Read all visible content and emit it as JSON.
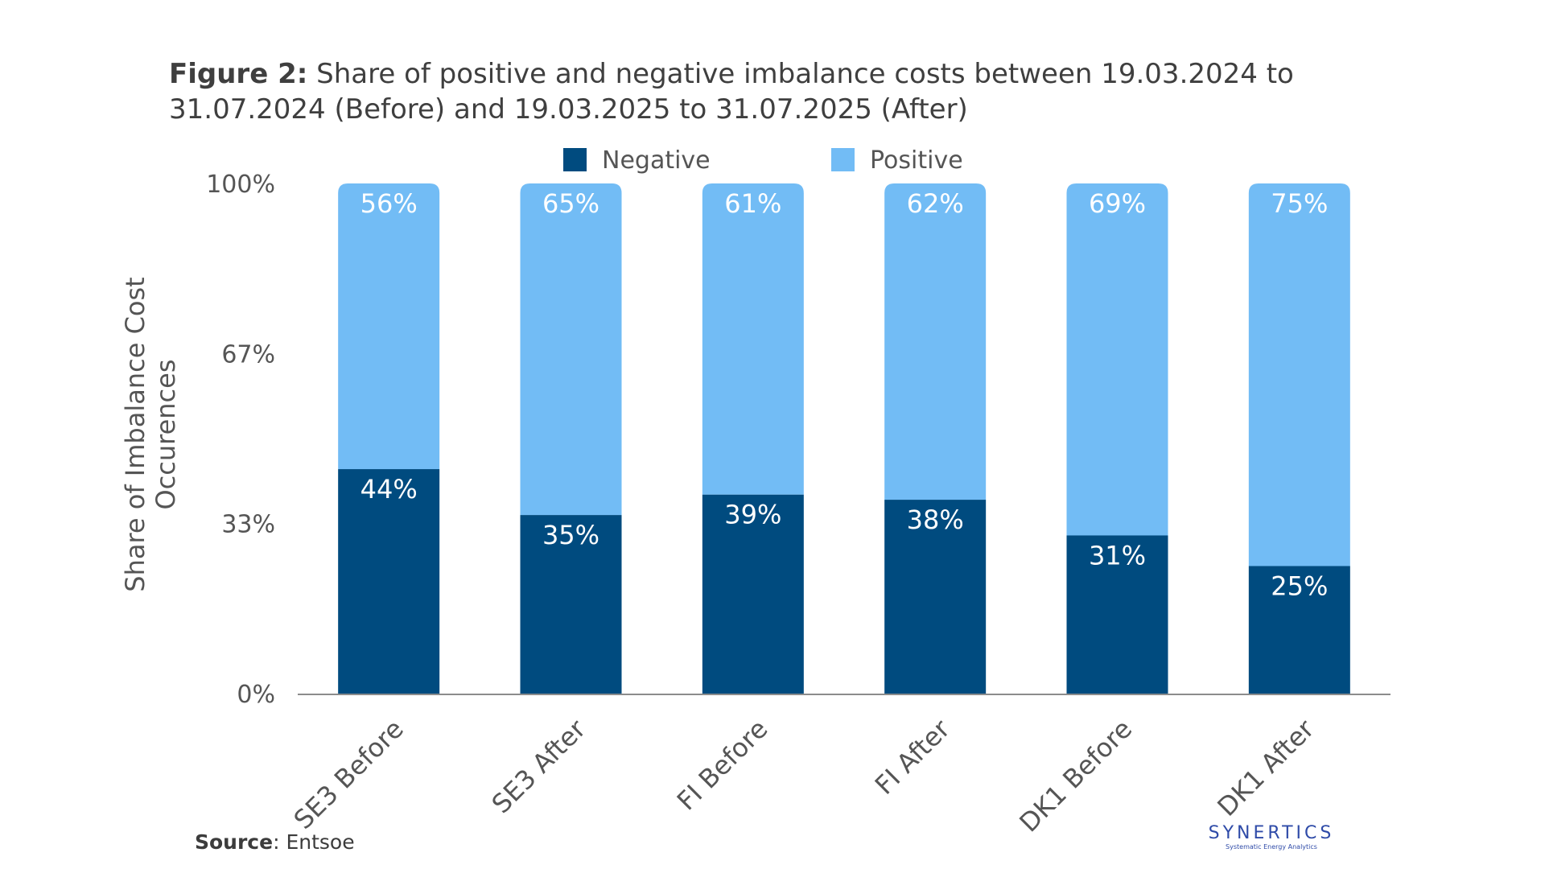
{
  "title": {
    "lead": "Figure 2:",
    "text": "Share of positive and negative imbalance costs between 19.03.2024 to 31.07.2024 (Before) and 19.03.2025 to 31.07.2025 (After)"
  },
  "source": {
    "label": "Source",
    "text": ": Entsoe"
  },
  "logo": {
    "name": "SYNERTICS",
    "tagline": "Systematic Energy Analytics"
  },
  "colors": {
    "negative": "#004b7f",
    "positive": "#72bcf5",
    "axis_text": "#555555",
    "label_text": "#ffffff"
  },
  "chart_data": {
    "type": "bar",
    "stacked": true,
    "title": "Figure 2: Share of positive and negative imbalance costs between 19.03.2024 to 31.07.2024 (Before) and 19.03.2025 to 31.07.2025 (After)",
    "xlabel": "",
    "ylabel": "Share of Imbalance Cost Occurences",
    "ylim": [
      0,
      100
    ],
    "yticks": [
      "0%",
      "33%",
      "67%",
      "100%"
    ],
    "ytick_values": [
      0,
      33.33,
      66.67,
      100
    ],
    "categories": [
      "SE3 Before",
      "SE3 After",
      "FI Before",
      "FI After",
      "DK1 Before",
      "DK1 After"
    ],
    "series": [
      {
        "name": "Negative",
        "values": [
          44,
          35,
          39,
          38,
          31,
          25
        ],
        "labels": [
          "44%",
          "35%",
          "39%",
          "38%",
          "31%",
          "25%"
        ]
      },
      {
        "name": "Positive",
        "values": [
          56,
          65,
          61,
          62,
          69,
          75
        ],
        "labels": [
          "56%",
          "65%",
          "61%",
          "62%",
          "69%",
          "75%"
        ]
      }
    ],
    "legend_position": "top",
    "grid": false
  }
}
